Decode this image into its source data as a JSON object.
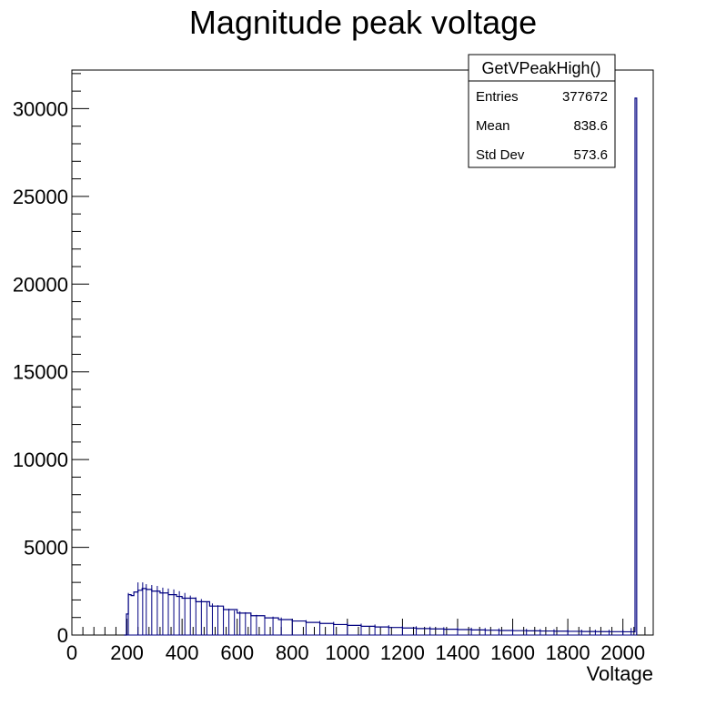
{
  "chart_data": {
    "type": "histogram",
    "title": "Magnitude peak voltage",
    "xlabel": "Voltage",
    "ylabel": "",
    "xlim": [
      0,
      2110
    ],
    "ylim": [
      0,
      32200
    ],
    "x_ticks": [
      0,
      200,
      400,
      600,
      800,
      1000,
      1200,
      1400,
      1600,
      1800,
      2000
    ],
    "y_ticks": [
      0,
      5000,
      10000,
      15000,
      20000,
      25000,
      30000
    ],
    "line_color": "#000080",
    "grid": false,
    "legend": "top-right",
    "stats_box": {
      "name": "GetVPeakHigh()",
      "rows": [
        {
          "label": "Entries",
          "value": "377672"
        },
        {
          "label": "Mean",
          "value": "838.6"
        },
        {
          "label": "Std Dev",
          "value": "573.6"
        }
      ]
    },
    "series": [
      {
        "points": [
          [
            190,
            0
          ],
          [
            198,
            1200
          ],
          [
            205,
            2300
          ],
          [
            215,
            2250
          ],
          [
            225,
            2450
          ],
          [
            240,
            2550
          ],
          [
            255,
            2650
          ],
          [
            270,
            2600
          ],
          [
            290,
            2500
          ],
          [
            320,
            2400
          ],
          [
            350,
            2300
          ],
          [
            380,
            2200
          ],
          [
            400,
            2100
          ],
          [
            450,
            1900
          ],
          [
            500,
            1650
          ],
          [
            550,
            1450
          ],
          [
            600,
            1250
          ],
          [
            650,
            1100
          ],
          [
            700,
            980
          ],
          [
            750,
            880
          ],
          [
            800,
            800
          ],
          [
            850,
            720
          ],
          [
            900,
            660
          ],
          [
            950,
            600
          ],
          [
            1000,
            550
          ],
          [
            1050,
            500
          ],
          [
            1100,
            460
          ],
          [
            1150,
            430
          ],
          [
            1200,
            400
          ],
          [
            1250,
            370
          ],
          [
            1300,
            350
          ],
          [
            1350,
            330
          ],
          [
            1400,
            310
          ],
          [
            1450,
            290
          ],
          [
            1500,
            275
          ],
          [
            1550,
            260
          ],
          [
            1600,
            250
          ],
          [
            1650,
            240
          ],
          [
            1700,
            230
          ],
          [
            1750,
            220
          ],
          [
            1800,
            210
          ],
          [
            1850,
            200
          ],
          [
            1900,
            195
          ],
          [
            1950,
            190
          ],
          [
            2000,
            185
          ],
          [
            2040,
            180
          ],
          [
            2044,
            30600
          ],
          [
            2050,
            0
          ]
        ],
        "spikes": [
          [
            205,
            2400
          ],
          [
            240,
            3000
          ],
          [
            257,
            3000
          ],
          [
            270,
            2900
          ],
          [
            290,
            2850
          ],
          [
            310,
            2800
          ],
          [
            330,
            2700
          ],
          [
            350,
            2650
          ],
          [
            370,
            2600
          ],
          [
            390,
            2500
          ],
          [
            410,
            2400
          ],
          [
            430,
            2250
          ],
          [
            450,
            2150
          ],
          [
            470,
            2050
          ],
          [
            490,
            1900
          ],
          [
            510,
            1800
          ],
          [
            530,
            1700
          ],
          [
            550,
            1600
          ],
          [
            570,
            1500
          ],
          [
            590,
            1400
          ],
          [
            610,
            1350
          ],
          [
            630,
            1300
          ],
          [
            650,
            1200
          ],
          [
            670,
            1150
          ],
          [
            700,
            1100
          ],
          [
            730,
            1050
          ],
          [
            760,
            1000
          ],
          [
            800,
            900
          ],
          [
            850,
            850
          ],
          [
            900,
            800
          ],
          [
            950,
            750
          ],
          [
            1000,
            700
          ],
          [
            1050,
            650
          ],
          [
            1100,
            600
          ],
          [
            1150,
            560
          ],
          [
            1200,
            520
          ],
          [
            1250,
            500
          ],
          [
            1300,
            480
          ],
          [
            1350,
            450
          ],
          [
            1400,
            440
          ],
          [
            1450,
            420
          ],
          [
            1500,
            400
          ],
          [
            1550,
            380
          ],
          [
            1600,
            360
          ],
          [
            1650,
            350
          ],
          [
            1700,
            340
          ],
          [
            1750,
            330
          ],
          [
            1800,
            320
          ],
          [
            1850,
            310
          ],
          [
            1900,
            300
          ],
          [
            1950,
            300
          ],
          [
            2000,
            300
          ],
          [
            2030,
            400
          ]
        ]
      }
    ]
  }
}
